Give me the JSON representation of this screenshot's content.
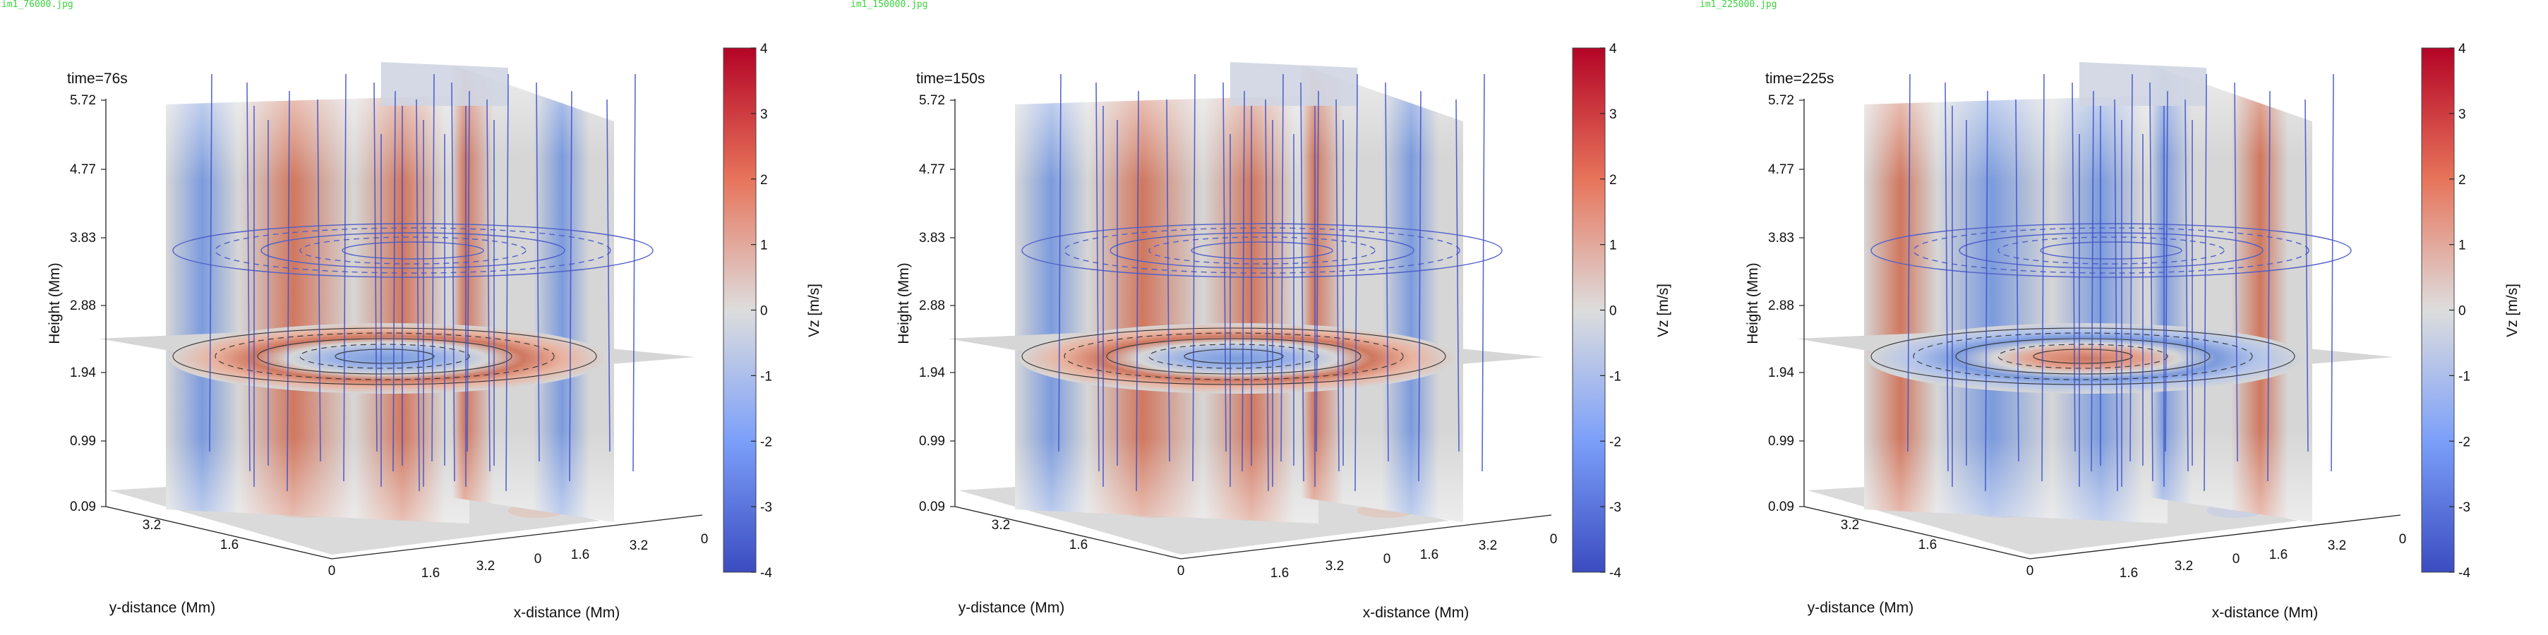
{
  "panels": [
    {
      "filename": "im1_76000.jpg",
      "time_label": "time=76s",
      "mode": "edge-red"
    },
    {
      "filename": "im1_150000.jpg",
      "time_label": "time=150s",
      "mode": "edge-red"
    },
    {
      "filename": "im1_225000.jpg",
      "time_label": "time=225s",
      "mode": "center-red"
    }
  ],
  "chart_data": [
    {
      "type": "heatmap",
      "title": "time=76s",
      "zlabel": "Height (Mm)",
      "xlabel": "x-distance (Mm)",
      "ylabel": "y-distance (Mm)",
      "z_ticks": [
        "5.72",
        "4.77",
        "3.83",
        "2.88",
        "1.94",
        "0.99",
        "0.09"
      ],
      "x_ticks": [
        "1.6",
        "3.2",
        "0",
        "1.6",
        "3.2",
        "0"
      ],
      "y_ticks": [
        "3.2",
        "1.6",
        "0"
      ],
      "colorbar": {
        "label": "Vz [m/s]",
        "min": -4,
        "max": 4,
        "ticks": [
          "4",
          "3",
          "2",
          "1",
          "0",
          "-1",
          "-2",
          "-3",
          "-4"
        ],
        "colormap": "coolwarm"
      },
      "pattern": "red ring at outer horizontal slice edge, blue center; red vertical bands near center, blue outer bands"
    },
    {
      "type": "heatmap",
      "title": "time=150s",
      "zlabel": "Height (Mm)",
      "xlabel": "x-distance (Mm)",
      "ylabel": "y-distance (Mm)",
      "z_ticks": [
        "5.72",
        "4.77",
        "3.83",
        "2.88",
        "1.94",
        "0.99",
        "0.09"
      ],
      "x_ticks": [
        "1.6",
        "3.2",
        "0",
        "1.6",
        "3.2",
        "0"
      ],
      "y_ticks": [
        "3.2",
        "1.6",
        "0"
      ],
      "colorbar": {
        "label": "Vz [m/s]",
        "min": -4,
        "max": 4,
        "ticks": [
          "4",
          "3",
          "2",
          "1",
          "0",
          "-1",
          "-2",
          "-3",
          "-4"
        ],
        "colormap": "coolwarm"
      },
      "pattern": "red ring at outer horizontal slice edge, blue center; red vertical bands near center, blue outer bands"
    },
    {
      "type": "heatmap",
      "title": "time=225s",
      "zlabel": "Height (Mm)",
      "xlabel": "x-distance (Mm)",
      "ylabel": "y-distance (Mm)",
      "z_ticks": [
        "5.72",
        "4.77",
        "3.83",
        "2.88",
        "1.94",
        "0.99",
        "0.09"
      ],
      "x_ticks": [
        "1.6",
        "3.2",
        "0",
        "1.6",
        "3.2",
        "0"
      ],
      "y_ticks": [
        "3.2",
        "1.6",
        "0"
      ],
      "colorbar": {
        "label": "Vz [m/s]",
        "min": -4,
        "max": 4,
        "ticks": [
          "4",
          "3",
          "2",
          "1",
          "0",
          "-1",
          "-2",
          "-3",
          "-4"
        ],
        "colormap": "coolwarm"
      },
      "pattern": "red center on horizontal slice, blue ring; blue vertical bands near center, red outer bands"
    }
  ]
}
